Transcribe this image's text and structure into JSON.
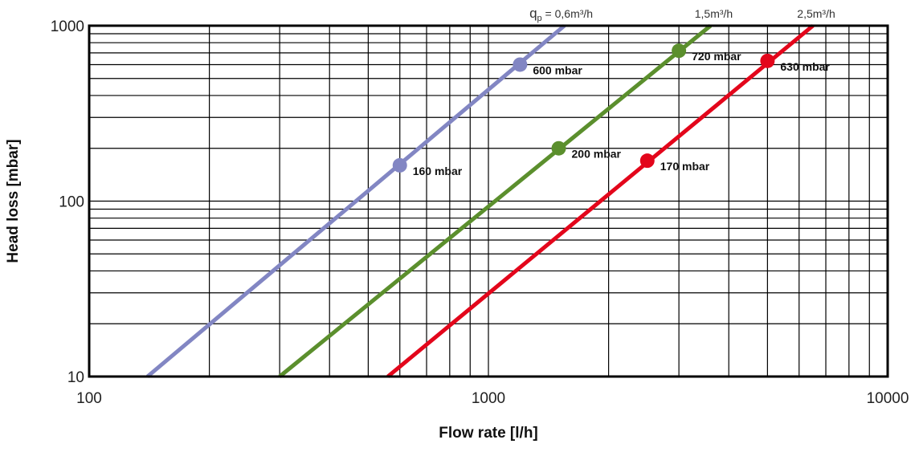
{
  "chart_data": {
    "type": "line",
    "title": "",
    "xlabel": "Flow rate [l/h]",
    "ylabel": "Head loss [mbar]",
    "xscale": "log",
    "yscale": "log",
    "xlim": [
      100,
      10000
    ],
    "ylim": [
      10,
      1000
    ],
    "x_ticks": [
      {
        "value": 100,
        "label": "100"
      },
      {
        "value": 1000,
        "label": "1000"
      },
      {
        "value": 10000,
        "label": "10000"
      }
    ],
    "y_ticks": [
      {
        "value": 10,
        "label": "10"
      },
      {
        "value": 100,
        "label": "100"
      },
      {
        "value": 1000,
        "label": "1000"
      }
    ],
    "grid": true,
    "series": [
      {
        "name": "qp = 0,6m³/h",
        "name_parts": {
          "symbol": "q",
          "subscript": "p",
          "rest": " = 0,6m³/h"
        },
        "color": "#8286c3",
        "x": [
          140,
          1550
        ],
        "y": [
          10,
          1000
        ],
        "points": [
          {
            "x": 600,
            "y": 160,
            "label": "160 mbar"
          },
          {
            "x": 1200,
            "y": 600,
            "label": "600 mbar"
          }
        ]
      },
      {
        "name": "1,5m³/h",
        "color": "#5b8f2d",
        "x": [
          300,
          3600
        ],
        "y": [
          10,
          1000
        ],
        "points": [
          {
            "x": 1500,
            "y": 200,
            "label": "200 mbar"
          },
          {
            "x": 3000,
            "y": 720,
            "label": "720 mbar"
          }
        ]
      },
      {
        "name": "2,5m³/h",
        "color": "#e3061b",
        "x": [
          560,
          6500
        ],
        "y": [
          10,
          1000
        ],
        "points": [
          {
            "x": 2500,
            "y": 170,
            "label": "170 mbar"
          },
          {
            "x": 5000,
            "y": 630,
            "label": "630 mbar"
          }
        ]
      }
    ]
  }
}
